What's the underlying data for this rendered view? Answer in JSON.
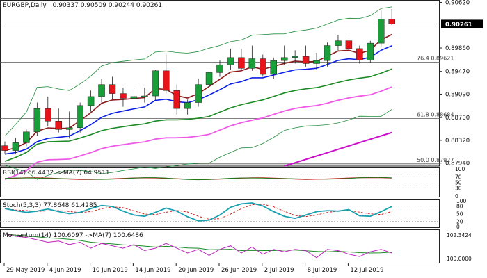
{
  "header": {
    "symbol": "EURGBP,Daily",
    "ohlc": "0.90337 0.90509 0.90244 0.90261"
  },
  "colors": {
    "bull": "#1a9e3a",
    "bear": "#e8141b",
    "fast_ma": "#8b1a1a",
    "ma_blue": "#0a1ee6",
    "ma_green": "#1a8a22",
    "ma_pink": "#ee5ae6",
    "ma_magenta": "#cc0fcc",
    "bollinger": "#1e8c3a",
    "fib_line": "#555555",
    "rsi": "#1b7a1b",
    "rsi_ma": "#cc1111",
    "stoch_main": "#1aa0b0",
    "stoch_signal": "#cc2222",
    "momentum": "#bb22bb",
    "momentum_ma": "#1a8a22"
  },
  "main_axis": {
    "ticks": [
      "0.90620",
      "0.89860",
      "0.89470",
      "0.89090",
      "0.88700",
      "0.88320",
      "0.87940"
    ],
    "current_price": "0.90261"
  },
  "fib_levels": [
    {
      "label": "76.4",
      "price": "0.89621"
    },
    {
      "label": "61.8",
      "price": "0.88684"
    },
    {
      "label": "50.0",
      "price": "0.87927"
    }
  ],
  "rsi": {
    "title": "RSI(14) 66.4432 ->MA(7) 64.9511",
    "axis": [
      "100",
      "70",
      "50",
      "30",
      "0"
    ]
  },
  "stoch": {
    "title": "Stoch(5,3,3) 77.8648 61.4285",
    "axis": [
      "100",
      "80",
      "50",
      "20",
      "0"
    ]
  },
  "momentum": {
    "title": "Momentum(14) 100.6097 ->MA(7) 100.6486",
    "axis": [
      "102.3424",
      "100.0000"
    ]
  },
  "x_axis": {
    "labels": [
      "29 May 2019",
      "4 Jun 2019",
      "10 Jun 2019",
      "14 Jun 2019",
      "20 Jun 2019",
      "26 Jun 2019",
      "2 Jul 2019",
      "8 Jul 2019",
      "12 Jul 2019"
    ]
  },
  "chart_data": {
    "type": "candlestick",
    "ylim": [
      0.8789,
      0.9066
    ],
    "candles": [
      {
        "o": 0.8823,
        "h": 0.883,
        "l": 0.881,
        "c": 0.8815
      },
      {
        "o": 0.8815,
        "h": 0.8836,
        "l": 0.881,
        "c": 0.8828
      },
      {
        "o": 0.8828,
        "h": 0.885,
        "l": 0.8822,
        "c": 0.8846
      },
      {
        "o": 0.8846,
        "h": 0.8895,
        "l": 0.884,
        "c": 0.8885
      },
      {
        "o": 0.8885,
        "h": 0.8905,
        "l": 0.8855,
        "c": 0.8864
      },
      {
        "o": 0.8864,
        "h": 0.8885,
        "l": 0.8845,
        "c": 0.885
      },
      {
        "o": 0.885,
        "h": 0.888,
        "l": 0.8835,
        "c": 0.8853
      },
      {
        "o": 0.8853,
        "h": 0.8895,
        "l": 0.8845,
        "c": 0.889
      },
      {
        "o": 0.889,
        "h": 0.8915,
        "l": 0.888,
        "c": 0.8905
      },
      {
        "o": 0.8905,
        "h": 0.8935,
        "l": 0.8895,
        "c": 0.8925
      },
      {
        "o": 0.8925,
        "h": 0.8938,
        "l": 0.89,
        "c": 0.891
      },
      {
        "o": 0.891,
        "h": 0.892,
        "l": 0.8888,
        "c": 0.8902
      },
      {
        "o": 0.8902,
        "h": 0.8918,
        "l": 0.889,
        "c": 0.8905
      },
      {
        "o": 0.8905,
        "h": 0.892,
        "l": 0.8895,
        "c": 0.8906
      },
      {
        "o": 0.8906,
        "h": 0.895,
        "l": 0.8898,
        "c": 0.8948
      },
      {
        "o": 0.8948,
        "h": 0.8975,
        "l": 0.891,
        "c": 0.8915
      },
      {
        "o": 0.8915,
        "h": 0.8925,
        "l": 0.8875,
        "c": 0.8885
      },
      {
        "o": 0.8885,
        "h": 0.89,
        "l": 0.8875,
        "c": 0.8895
      },
      {
        "o": 0.8895,
        "h": 0.8935,
        "l": 0.8888,
        "c": 0.8925
      },
      {
        "o": 0.8925,
        "h": 0.895,
        "l": 0.8918,
        "c": 0.8945
      },
      {
        "o": 0.8945,
        "h": 0.8965,
        "l": 0.8938,
        "c": 0.8958
      },
      {
        "o": 0.8958,
        "h": 0.8985,
        "l": 0.895,
        "c": 0.897
      },
      {
        "o": 0.897,
        "h": 0.8985,
        "l": 0.895,
        "c": 0.8952
      },
      {
        "o": 0.8952,
        "h": 0.899,
        "l": 0.8948,
        "c": 0.8968
      },
      {
        "o": 0.8968,
        "h": 0.8975,
        "l": 0.8938,
        "c": 0.8942
      },
      {
        "o": 0.8942,
        "h": 0.897,
        "l": 0.8935,
        "c": 0.8965
      },
      {
        "o": 0.8965,
        "h": 0.899,
        "l": 0.8958,
        "c": 0.897
      },
      {
        "o": 0.897,
        "h": 0.8982,
        "l": 0.896,
        "c": 0.8972
      },
      {
        "o": 0.8972,
        "h": 0.899,
        "l": 0.8955,
        "c": 0.896
      },
      {
        "o": 0.896,
        "h": 0.8978,
        "l": 0.895,
        "c": 0.8965
      },
      {
        "o": 0.8965,
        "h": 0.8995,
        "l": 0.8955,
        "c": 0.899
      },
      {
        "o": 0.899,
        "h": 0.9008,
        "l": 0.8982,
        "c": 0.8998
      },
      {
        "o": 0.8998,
        "h": 0.9005,
        "l": 0.8975,
        "c": 0.8985
      },
      {
        "o": 0.8985,
        "h": 0.899,
        "l": 0.896,
        "c": 0.8966
      },
      {
        "o": 0.8966,
        "h": 0.8998,
        "l": 0.8962,
        "c": 0.8994
      },
      {
        "o": 0.8994,
        "h": 0.905,
        "l": 0.8988,
        "c": 0.9034
      },
      {
        "o": 0.9034,
        "h": 0.9051,
        "l": 0.9024,
        "c": 0.9026
      }
    ]
  }
}
